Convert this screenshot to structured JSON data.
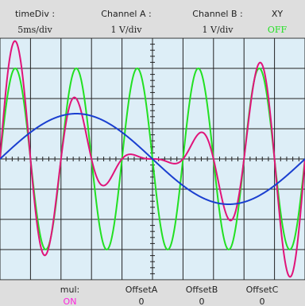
{
  "header": {
    "time_div": {
      "label": "timeDiv :",
      "value": "5ms/div"
    },
    "channel_a": {
      "label": "Channel A :",
      "value": "1 V/div"
    },
    "channel_b": {
      "label": "Channel B :",
      "value": "1 V/div"
    },
    "xy_mode": {
      "label": "XY",
      "value": "OFF"
    }
  },
  "footer": {
    "mul": {
      "label": "mul:",
      "value": "ON"
    },
    "offset_a": {
      "label": "OffsetA",
      "value": "0"
    },
    "offset_b": {
      "label": "OffsetB",
      "value": "0"
    },
    "offset_c": {
      "label": "OffsetC",
      "value": "0"
    }
  },
  "colors": {
    "screen_background": "#ddeef7",
    "grid": "#222222",
    "trace_green": "#22e022",
    "trace_magenta": "#e0147a",
    "trace_blue": "#1a3fd0",
    "accent_green": "#22e022",
    "accent_on": "#ff22dd"
  },
  "chart_data": {
    "type": "line",
    "grid_divisions": {
      "x": 10,
      "y": 8
    },
    "x_range_div": [
      -5,
      5
    ],
    "y_range_div": [
      -4,
      4
    ],
    "series": [
      {
        "color": "#22e022",
        "amplitude_div": 3,
        "cycles_on_screen": 5.0,
        "phase_deg": 0
      },
      {
        "color": "#e0147a",
        "amplitude_div": 2.0,
        "cycles_on_screen": 5.0,
        "phase_deg": 0,
        "modulation_cycles": 1.0
      },
      {
        "color": "#1a3fd0",
        "amplitude_div": 1.5,
        "cycles_on_screen": 1.0,
        "phase_deg": 0
      }
    ]
  }
}
